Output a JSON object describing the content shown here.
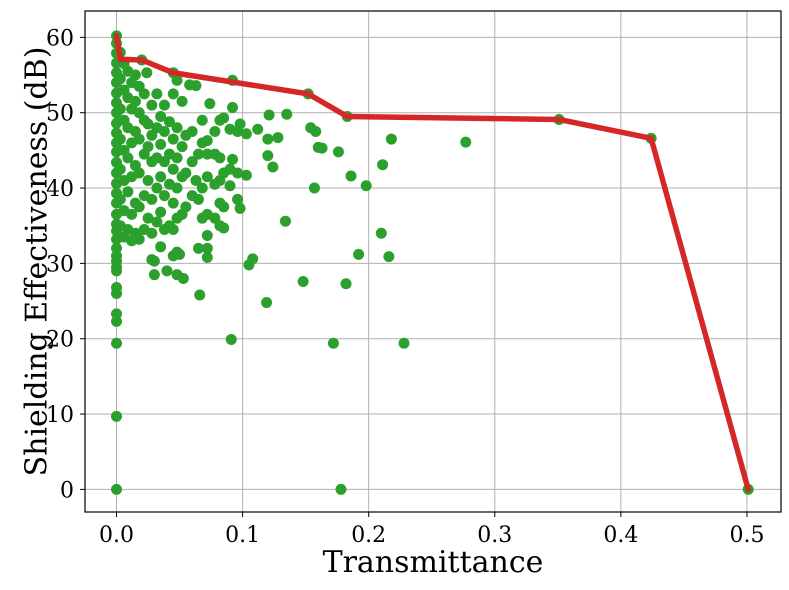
{
  "chart_data": {
    "type": "scatter",
    "xlabel": "Transmittance",
    "ylabel": "Shielding Effectiveness (dB)",
    "xlim": [
      -0.025,
      0.527
    ],
    "ylim": [
      -3,
      63.5
    ],
    "x_ticks": [
      0.0,
      0.1,
      0.2,
      0.3,
      0.4,
      0.5
    ],
    "x_tick_labels": [
      "0.0",
      "0.1",
      "0.2",
      "0.3",
      "0.4",
      "0.5"
    ],
    "y_ticks": [
      0,
      10,
      20,
      30,
      40,
      50,
      60
    ],
    "y_tick_labels": [
      "0",
      "10",
      "20",
      "30",
      "40",
      "50",
      "60"
    ],
    "grid": true,
    "legend": "none",
    "series": [
      {
        "type": "scatter",
        "color": "#2ca02c",
        "points": [
          [
            0.0,
            0.0
          ],
          [
            0.0,
            9.7
          ],
          [
            0.0,
            19.4
          ],
          [
            0.0,
            22.3
          ],
          [
            0.0,
            23.3
          ],
          [
            0.0,
            26.0
          ],
          [
            0.0,
            26.8
          ],
          [
            0.0,
            29.0
          ],
          [
            0.0,
            29.5
          ],
          [
            0.0,
            30.3
          ],
          [
            0.0,
            31.0
          ],
          [
            0.0,
            32.0
          ],
          [
            0.0,
            33.2
          ],
          [
            0.0,
            34.3
          ],
          [
            0.0,
            35.2
          ],
          [
            0.0,
            36.5
          ],
          [
            0.0,
            38.0
          ],
          [
            0.0,
            39.3
          ],
          [
            0.0,
            40.6
          ],
          [
            0.0,
            42.0
          ],
          [
            0.0,
            43.4
          ],
          [
            0.0,
            44.8
          ],
          [
            0.0,
            46.0
          ],
          [
            0.0,
            47.3
          ],
          [
            0.0,
            48.6
          ],
          [
            0.0,
            50.0
          ],
          [
            0.0,
            51.3
          ],
          [
            0.0,
            52.6
          ],
          [
            0.0,
            54.0
          ],
          [
            0.0,
            55.3
          ],
          [
            0.0,
            56.6
          ],
          [
            0.0,
            57.9
          ],
          [
            0.0,
            59.2
          ],
          [
            0.0,
            60.2
          ],
          [
            0.003,
            35.0
          ],
          [
            0.003,
            38.5
          ],
          [
            0.003,
            42.5
          ],
          [
            0.003,
            46.5
          ],
          [
            0.003,
            50.5
          ],
          [
            0.003,
            54.5
          ],
          [
            0.003,
            58.0
          ],
          [
            0.006,
            33.5
          ],
          [
            0.006,
            37.0
          ],
          [
            0.006,
            41.0
          ],
          [
            0.006,
            45.0
          ],
          [
            0.006,
            49.0
          ],
          [
            0.006,
            53.0
          ],
          [
            0.006,
            56.5
          ],
          [
            0.009,
            34.5
          ],
          [
            0.009,
            39.5
          ],
          [
            0.009,
            44.0
          ],
          [
            0.009,
            48.0
          ],
          [
            0.009,
            52.0
          ],
          [
            0.009,
            55.5
          ],
          [
            0.012,
            33.0
          ],
          [
            0.012,
            36.5
          ],
          [
            0.012,
            41.5
          ],
          [
            0.012,
            46.0
          ],
          [
            0.012,
            50.5
          ],
          [
            0.012,
            54.0
          ],
          [
            0.015,
            34.0
          ],
          [
            0.015,
            38.0
          ],
          [
            0.015,
            43.0
          ],
          [
            0.015,
            47.5
          ],
          [
            0.015,
            51.5
          ],
          [
            0.015,
            55.0
          ],
          [
            0.018,
            33.2
          ],
          [
            0.018,
            37.5
          ],
          [
            0.018,
            42.0
          ],
          [
            0.018,
            46.5
          ],
          [
            0.018,
            50.0
          ],
          [
            0.018,
            53.5
          ],
          [
            0.02,
            57.0
          ],
          [
            0.022,
            34.5
          ],
          [
            0.022,
            39.0
          ],
          [
            0.022,
            44.5
          ],
          [
            0.022,
            49.0
          ],
          [
            0.022,
            52.5
          ],
          [
            0.024,
            55.3
          ],
          [
            0.025,
            36.0
          ],
          [
            0.025,
            41.0
          ],
          [
            0.025,
            45.5
          ],
          [
            0.025,
            48.5
          ],
          [
            0.028,
            30.5
          ],
          [
            0.028,
            34.0
          ],
          [
            0.028,
            38.5
          ],
          [
            0.028,
            43.5
          ],
          [
            0.028,
            47.0
          ],
          [
            0.028,
            51.0
          ],
          [
            0.03,
            28.5
          ],
          [
            0.03,
            30.3
          ],
          [
            0.032,
            35.5
          ],
          [
            0.032,
            40.0
          ],
          [
            0.032,
            44.0
          ],
          [
            0.032,
            48.0
          ],
          [
            0.032,
            52.5
          ],
          [
            0.035,
            32.2
          ],
          [
            0.035,
            36.8
          ],
          [
            0.035,
            41.5
          ],
          [
            0.035,
            45.8
          ],
          [
            0.035,
            49.5
          ],
          [
            0.038,
            34.5
          ],
          [
            0.038,
            39.0
          ],
          [
            0.038,
            43.5
          ],
          [
            0.038,
            47.5
          ],
          [
            0.038,
            51.0
          ],
          [
            0.04,
            29.0
          ],
          [
            0.042,
            35.0
          ],
          [
            0.042,
            40.5
          ],
          [
            0.042,
            44.5
          ],
          [
            0.042,
            48.8
          ],
          [
            0.045,
            31.0
          ],
          [
            0.045,
            34.5
          ],
          [
            0.045,
            38.0
          ],
          [
            0.045,
            42.5
          ],
          [
            0.045,
            46.5
          ],
          [
            0.045,
            52.5
          ],
          [
            0.045,
            55.3
          ],
          [
            0.048,
            28.5
          ],
          [
            0.048,
            31.5
          ],
          [
            0.048,
            36.0
          ],
          [
            0.048,
            40.0
          ],
          [
            0.048,
            44.0
          ],
          [
            0.048,
            48.0
          ],
          [
            0.048,
            54.3
          ],
          [
            0.05,
            31.2
          ],
          [
            0.052,
            36.5
          ],
          [
            0.052,
            41.5
          ],
          [
            0.052,
            45.5
          ],
          [
            0.052,
            51.5
          ],
          [
            0.053,
            28.0
          ],
          [
            0.055,
            37.5
          ],
          [
            0.055,
            42.0
          ],
          [
            0.055,
            47.0
          ],
          [
            0.058,
            53.7
          ],
          [
            0.06,
            39.0
          ],
          [
            0.06,
            43.5
          ],
          [
            0.06,
            47.5
          ],
          [
            0.063,
            53.6
          ],
          [
            0.063,
            41.0
          ],
          [
            0.065,
            32.0
          ],
          [
            0.065,
            38.5
          ],
          [
            0.065,
            44.5
          ],
          [
            0.066,
            25.8
          ],
          [
            0.068,
            36.0
          ],
          [
            0.068,
            40.0
          ],
          [
            0.068,
            46.0
          ],
          [
            0.068,
            49.0
          ],
          [
            0.072,
            30.8
          ],
          [
            0.072,
            32.0
          ],
          [
            0.072,
            33.7
          ],
          [
            0.072,
            36.5
          ],
          [
            0.072,
            41.5
          ],
          [
            0.072,
            44.5
          ],
          [
            0.072,
            46.3
          ],
          [
            0.074,
            51.2
          ],
          [
            0.078,
            36.0
          ],
          [
            0.078,
            40.5
          ],
          [
            0.078,
            44.5
          ],
          [
            0.078,
            47.5
          ],
          [
            0.082,
            35.0
          ],
          [
            0.082,
            38.0
          ],
          [
            0.082,
            41.0
          ],
          [
            0.082,
            44.0
          ],
          [
            0.082,
            49.0
          ],
          [
            0.085,
            34.7
          ],
          [
            0.085,
            37.5
          ],
          [
            0.085,
            42.0
          ],
          [
            0.085,
            49.3
          ],
          [
            0.09,
            40.3
          ],
          [
            0.09,
            42.5
          ],
          [
            0.09,
            47.8
          ],
          [
            0.091,
            19.9
          ],
          [
            0.092,
            43.8
          ],
          [
            0.092,
            50.7
          ],
          [
            0.092,
            54.3
          ],
          [
            0.096,
            38.5
          ],
          [
            0.096,
            42.0
          ],
          [
            0.096,
            47.5
          ],
          [
            0.098,
            37.3
          ],
          [
            0.098,
            48.5
          ],
          [
            0.103,
            41.7
          ],
          [
            0.103,
            47.2
          ],
          [
            0.105,
            29.8
          ],
          [
            0.108,
            30.6
          ],
          [
            0.112,
            47.8
          ],
          [
            0.119,
            24.8
          ],
          [
            0.12,
            44.3
          ],
          [
            0.12,
            46.5
          ],
          [
            0.121,
            49.7
          ],
          [
            0.124,
            42.8
          ],
          [
            0.128,
            46.7
          ],
          [
            0.134,
            35.6
          ],
          [
            0.135,
            49.8
          ],
          [
            0.148,
            27.6
          ],
          [
            0.152,
            52.5
          ],
          [
            0.154,
            48.0
          ],
          [
            0.157,
            40.0
          ],
          [
            0.158,
            47.5
          ],
          [
            0.16,
            45.4
          ],
          [
            0.163,
            45.3
          ],
          [
            0.172,
            19.4
          ],
          [
            0.176,
            44.8
          ],
          [
            0.178,
            0.0
          ],
          [
            0.182,
            27.3
          ],
          [
            0.183,
            49.5
          ],
          [
            0.186,
            41.6
          ],
          [
            0.192,
            31.2
          ],
          [
            0.198,
            40.3
          ],
          [
            0.21,
            34.0
          ],
          [
            0.211,
            43.1
          ],
          [
            0.216,
            30.9
          ],
          [
            0.218,
            46.5
          ],
          [
            0.228,
            19.4
          ],
          [
            0.277,
            46.1
          ],
          [
            0.351,
            49.1
          ],
          [
            0.424,
            46.6
          ],
          [
            0.501,
            0.0
          ]
        ]
      },
      {
        "type": "line",
        "color": "#d62728",
        "points": [
          [
            0.0,
            60.2
          ],
          [
            0.003,
            57.1
          ],
          [
            0.02,
            57.0
          ],
          [
            0.045,
            55.3
          ],
          [
            0.152,
            52.5
          ],
          [
            0.183,
            49.5
          ],
          [
            0.351,
            49.1
          ],
          [
            0.424,
            46.6
          ],
          [
            0.501,
            0.0
          ]
        ]
      }
    ]
  }
}
